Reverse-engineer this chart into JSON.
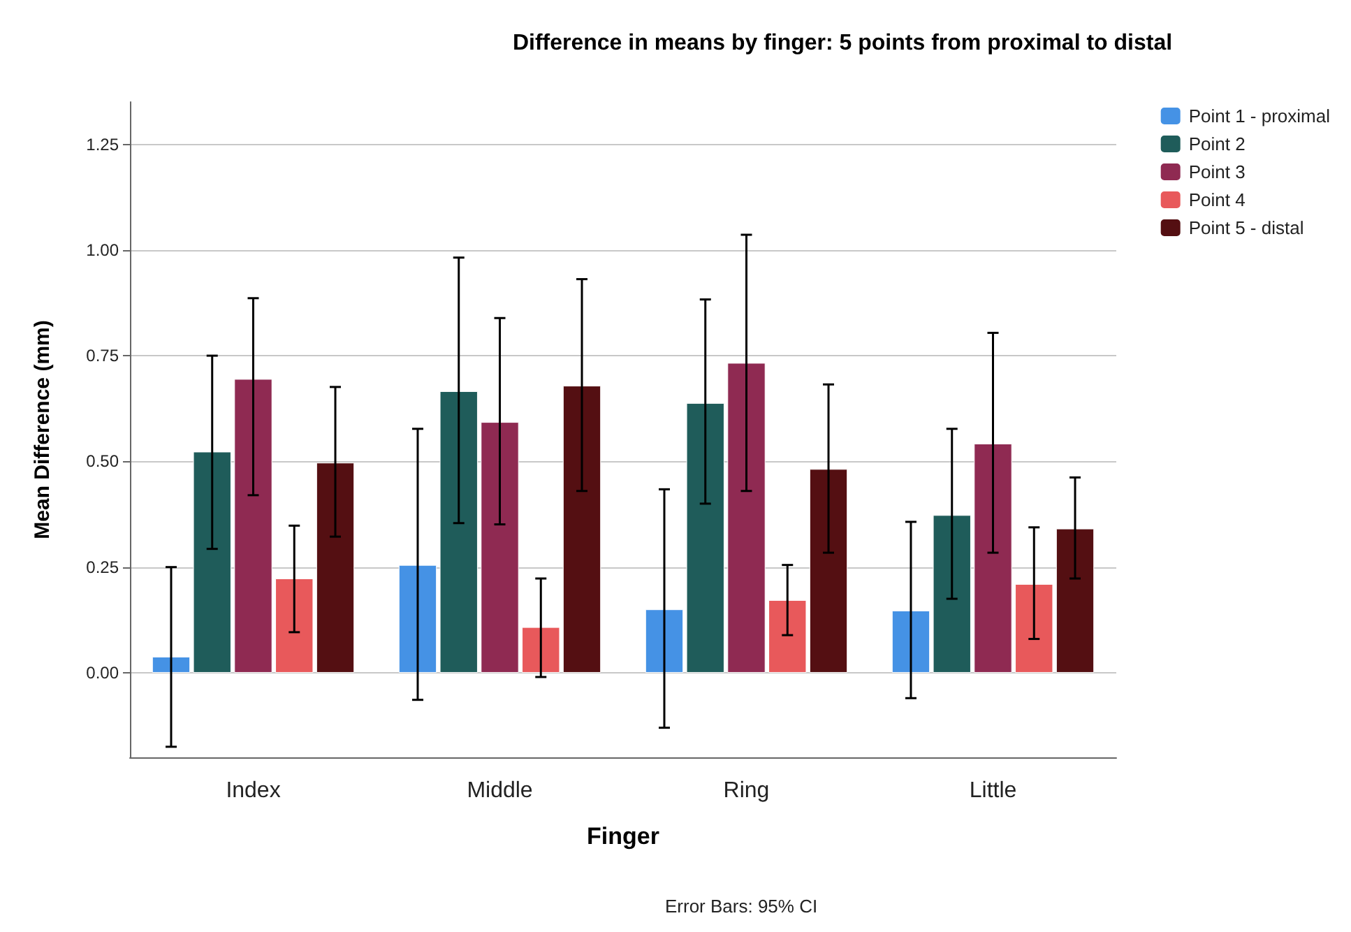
{
  "chart_data": {
    "type": "bar",
    "title": "Difference in means by finger: 5 points from proximal to distal",
    "xlabel": "Finger",
    "ylabel": "Mean Difference (mm)",
    "categories": [
      "Index",
      "Middle",
      "Ring",
      "Little"
    ],
    "series": [
      {
        "name": "Point 1 - proximal",
        "color": "#4592e5",
        "values": [
          0.038,
          0.255,
          0.15,
          0.147
        ],
        "errors": [
          [
            -0.175,
            0.25
          ],
          [
            -0.064,
            0.577
          ],
          [
            -0.13,
            0.434
          ],
          [
            -0.06,
            0.357
          ]
        ]
      },
      {
        "name": "Point 2",
        "color": "#1f5c5a",
        "values": [
          0.523,
          0.666,
          0.638,
          0.373
        ],
        "errors": [
          [
            0.293,
            0.75
          ],
          [
            0.354,
            0.982
          ],
          [
            0.4,
            0.883
          ],
          [
            0.175,
            0.577
          ]
        ]
      },
      {
        "name": "Point 3",
        "color": "#8f2a52",
        "values": [
          0.695,
          0.593,
          0.733,
          0.542
        ],
        "errors": [
          [
            0.42,
            0.886
          ],
          [
            0.351,
            0.839
          ],
          [
            0.43,
            1.036
          ],
          [
            0.284,
            0.804
          ]
        ]
      },
      {
        "name": "Point 4",
        "color": "#e8595b",
        "values": [
          0.223,
          0.108,
          0.172,
          0.21
        ],
        "errors": [
          [
            0.096,
            0.348
          ],
          [
            -0.01,
            0.223
          ],
          [
            0.089,
            0.255
          ],
          [
            0.08,
            0.344
          ]
        ]
      },
      {
        "name": "Point 5 - distal",
        "color": "#540f12",
        "values": [
          0.497,
          0.679,
          0.482,
          0.341
        ],
        "errors": [
          [
            0.322,
            0.676
          ],
          [
            0.43,
            0.931
          ],
          [
            0.284,
            0.682
          ],
          [
            0.223,
            0.462
          ]
        ]
      }
    ],
    "ylim": [
      -0.2,
      1.35
    ],
    "yticks": [
      {
        "value": 0,
        "label": "0.00"
      },
      {
        "value": 0.25,
        "label": "0.25"
      },
      {
        "value": 0.5,
        "label": "0.50"
      },
      {
        "value": 0.75,
        "label": "0.75"
      },
      {
        "value": 1,
        "label": "1.00"
      },
      {
        "value": 1.25,
        "label": "1.25"
      }
    ],
    "grid": "y",
    "legend": "top right",
    "annotations": [
      "Error Bars: 95% CI"
    ]
  }
}
